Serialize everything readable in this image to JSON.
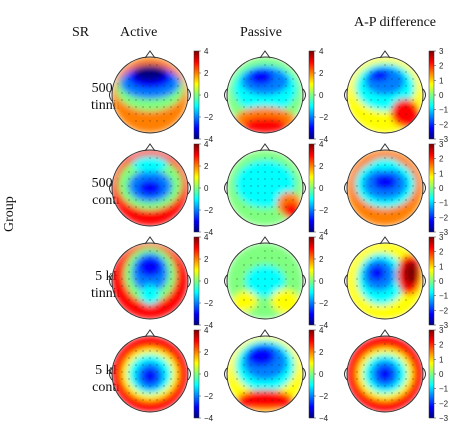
{
  "header": {
    "sr": "SR",
    "columns": [
      "Active",
      "Passive",
      "A-P difference"
    ]
  },
  "axis": {
    "group_label": "Group"
  },
  "rows": [
    {
      "label_line1": "500 Hz",
      "label_line2": "tinnitus"
    },
    {
      "label_line1": "500 Hz",
      "label_line2": "control"
    },
    {
      "label_line1": "5 kHz",
      "label_line2": "tinnitus"
    },
    {
      "label_line1": "5 kHz",
      "label_line2": "control"
    }
  ],
  "colorbars": {
    "active_passive_ticks": [
      "4",
      "2",
      "0",
      "−2",
      "−4"
    ],
    "difference_ticks": [
      "3",
      "2",
      "1",
      "0",
      "−1",
      "−2",
      "−3"
    ]
  },
  "colormap": [
    "#00007f",
    "#0000ff",
    "#007fff",
    "#00ffff",
    "#7fff7f",
    "#ffff00",
    "#ff7f00",
    "#ff0000",
    "#7f0000"
  ]
}
